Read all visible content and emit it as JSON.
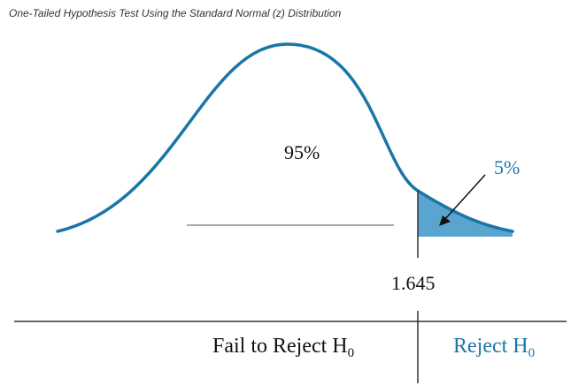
{
  "title": "One-Tailed Hypothesis Test Using the Standard Normal (z) Distribution",
  "labels": {
    "center_pct": "95%",
    "tail_pct": "5%",
    "critical_value": "1.645",
    "fail_region_text": "Fail to Reject H",
    "reject_region_text": "Reject H",
    "subscript": "0"
  },
  "colors": {
    "curve": "#1a76a8",
    "tail_fill": "#5aa5cf",
    "accent_text": "#1a76a8",
    "line": "#333333",
    "text": "#111111"
  }
}
